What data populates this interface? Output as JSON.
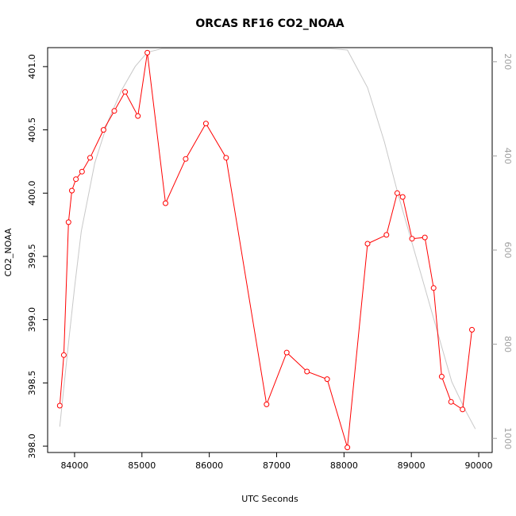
{
  "chart_data": {
    "type": "line",
    "title": "ORCAS RF16 CO2_NOAA",
    "xlabel": "UTC Seconds",
    "ylabel": "CO2_NOAA",
    "xlim": [
      83600,
      90200
    ],
    "ylim": [
      397.95,
      401.15
    ],
    "y2lim": [
      1030,
      170
    ],
    "x_ticks": [
      84000,
      85000,
      86000,
      87000,
      88000,
      89000,
      90000
    ],
    "y_ticks": [
      398.0,
      398.5,
      399.0,
      399.5,
      400.0,
      400.5,
      401.0
    ],
    "y_tick_labels": [
      "398.0",
      "398.5",
      "399.0",
      "399.5",
      "400.0",
      "400.5",
      "401.0"
    ],
    "y2_ticks": [
      200,
      400,
      600,
      800,
      1000
    ],
    "series": [
      {
        "color": "#ff0000",
        "marker": "open-circle",
        "x": [
          83780,
          83840,
          83910,
          83960,
          84020,
          84110,
          84230,
          84430,
          84590,
          84750,
          84940,
          85080,
          85350,
          85650,
          85950,
          86250,
          86850,
          87150,
          87450,
          87750,
          88050,
          88350,
          88630,
          88790,
          88870,
          89010,
          89200,
          89330,
          89450,
          89590,
          89760,
          89900
        ],
        "y": [
          398.32,
          398.72,
          399.77,
          400.02,
          400.11,
          400.17,
          400.28,
          400.5,
          400.65,
          400.8,
          400.61,
          401.11,
          399.92,
          400.27,
          400.55,
          400.28,
          398.33,
          398.74,
          398.59,
          398.53,
          397.99,
          399.6,
          399.67,
          400.0,
          399.97,
          399.64,
          399.65,
          399.25,
          398.55,
          398.35,
          398.29,
          398.92
        ]
      },
      {
        "color": "#c8c8c8",
        "marker": "none",
        "axis": "right",
        "x": [
          83780,
          83900,
          84000,
          84100,
          84300,
          84500,
          84700,
          84900,
          85080,
          85300,
          85600,
          86000,
          86500,
          87000,
          87500,
          87800,
          88050,
          88350,
          88600,
          88800,
          89000,
          89200,
          89400,
          89600,
          89800,
          89950
        ],
        "y": [
          975,
          810,
          680,
          560,
          415,
          325,
          260,
          210,
          180,
          172,
          172,
          172,
          172,
          172,
          172,
          172,
          175,
          255,
          370,
          480,
          580,
          680,
          780,
          880,
          940,
          980
        ]
      }
    ]
  }
}
